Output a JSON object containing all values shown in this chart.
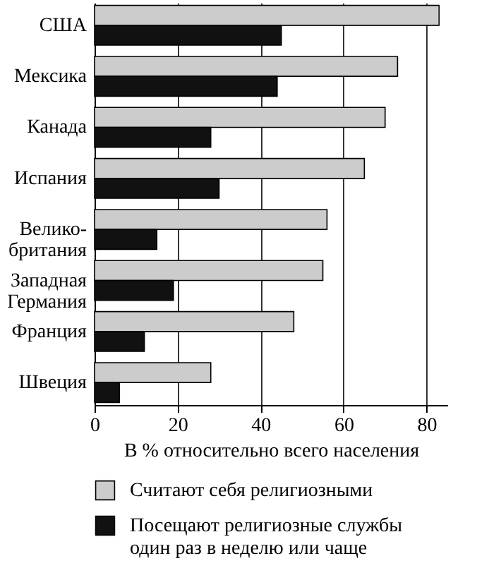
{
  "chart_data": {
    "type": "bar",
    "orientation": "horizontal",
    "categories": [
      "США",
      "Мексика",
      "Канада",
      "Испания",
      "Велико-\nбритания",
      "Западная\nГермания",
      "Франция",
      "Швеция"
    ],
    "series": [
      {
        "name": "Считают себя религиозными",
        "color": "#cccccc",
        "values": [
          83,
          73,
          70,
          65,
          56,
          55,
          48,
          28
        ]
      },
      {
        "name": "Посещают религиозные службы\nодин раз в неделю или чаще",
        "color": "#111111",
        "values": [
          45,
          44,
          28,
          30,
          15,
          19,
          12,
          6
        ]
      }
    ],
    "xlabel": "В % относительно всего населения",
    "xlim": [
      0,
      85
    ],
    "xticks": [
      0,
      20,
      40,
      60,
      80
    ],
    "grid": "x",
    "legend": "bottom"
  }
}
